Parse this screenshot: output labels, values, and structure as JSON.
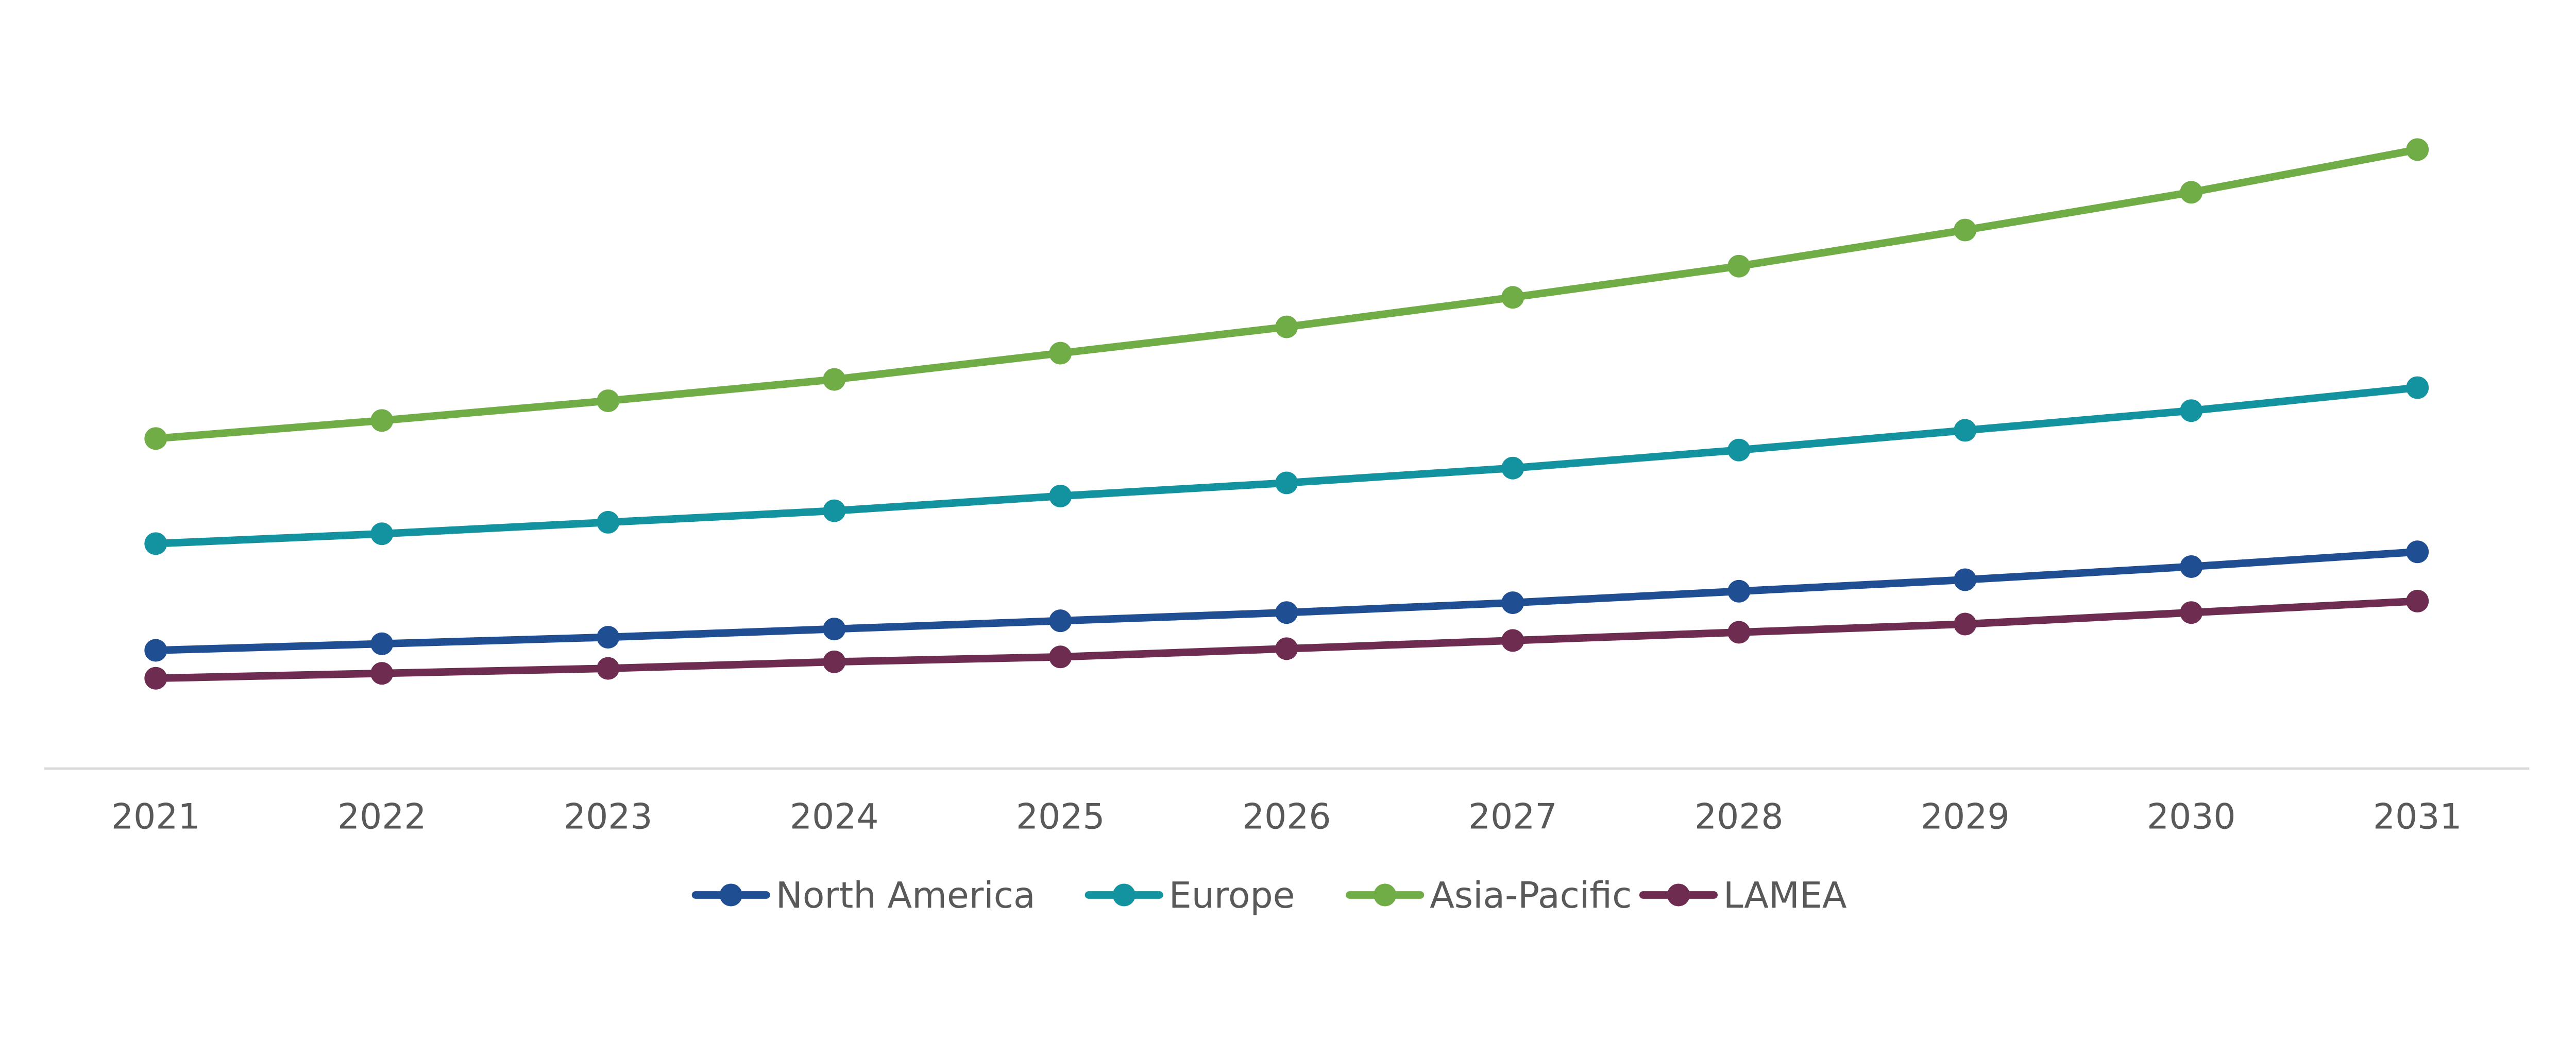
{
  "chart_data": {
    "type": "line",
    "title": "",
    "xlabel": "",
    "ylabel": "",
    "x": [
      "2021",
      "2022",
      "2023",
      "2024",
      "2025",
      "2026",
      "2027",
      "2028",
      "2029",
      "2030",
      "2031"
    ],
    "ylim": [
      0,
      400
    ],
    "y_axis_labels_shown": false,
    "grid": false,
    "legend_position": "bottom",
    "series": [
      {
        "name": "North America",
        "color": "#1f4e93",
        "values": [
          72,
          76,
          80,
          85,
          90,
          95,
          101,
          108,
          115,
          123,
          132
        ]
      },
      {
        "name": "Europe",
        "color": "#13939f",
        "values": [
          137,
          143,
          150,
          157,
          166,
          174,
          183,
          194,
          206,
          218,
          232
        ]
      },
      {
        "name": "Asia-Pacific",
        "color": "#70ad47",
        "values": [
          201,
          212,
          224,
          237,
          253,
          269,
          287,
          306,
          328,
          351,
          377
        ]
      },
      {
        "name": "LAMEA",
        "color": "#6d2c50",
        "values": [
          55,
          58,
          61,
          65,
          68,
          73,
          78,
          83,
          88,
          95,
          102
        ]
      }
    ]
  }
}
